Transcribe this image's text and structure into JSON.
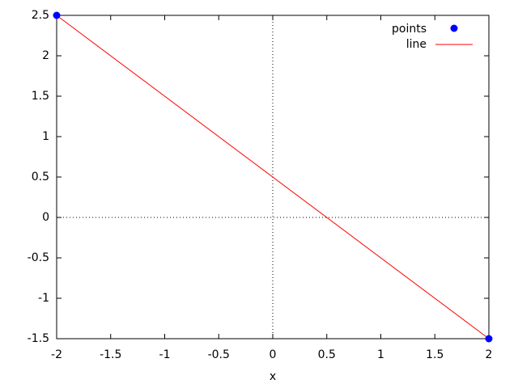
{
  "chart_data": {
    "type": "line",
    "xlabel": "x",
    "series": [
      {
        "name": "points",
        "type": "scatter",
        "color": "#0000ff",
        "x": [
          -2,
          2
        ],
        "values": [
          2.5,
          -1.5
        ]
      },
      {
        "name": "line",
        "type": "line",
        "color": "#ff0000",
        "x": [
          -2,
          2
        ],
        "values": [
          2.5,
          -1.5
        ]
      }
    ],
    "xlim": [
      -2,
      2
    ],
    "xticks": [
      -2,
      -1.5,
      -1,
      -0.5,
      0,
      0.5,
      1,
      1.5,
      2
    ],
    "ylim": [
      -1.5,
      2.5
    ],
    "yticks": [
      -1.5,
      -1,
      -0.5,
      0,
      0.5,
      1,
      1.5,
      2,
      2.5
    ],
    "zeroaxis": true,
    "legend": "top right"
  }
}
